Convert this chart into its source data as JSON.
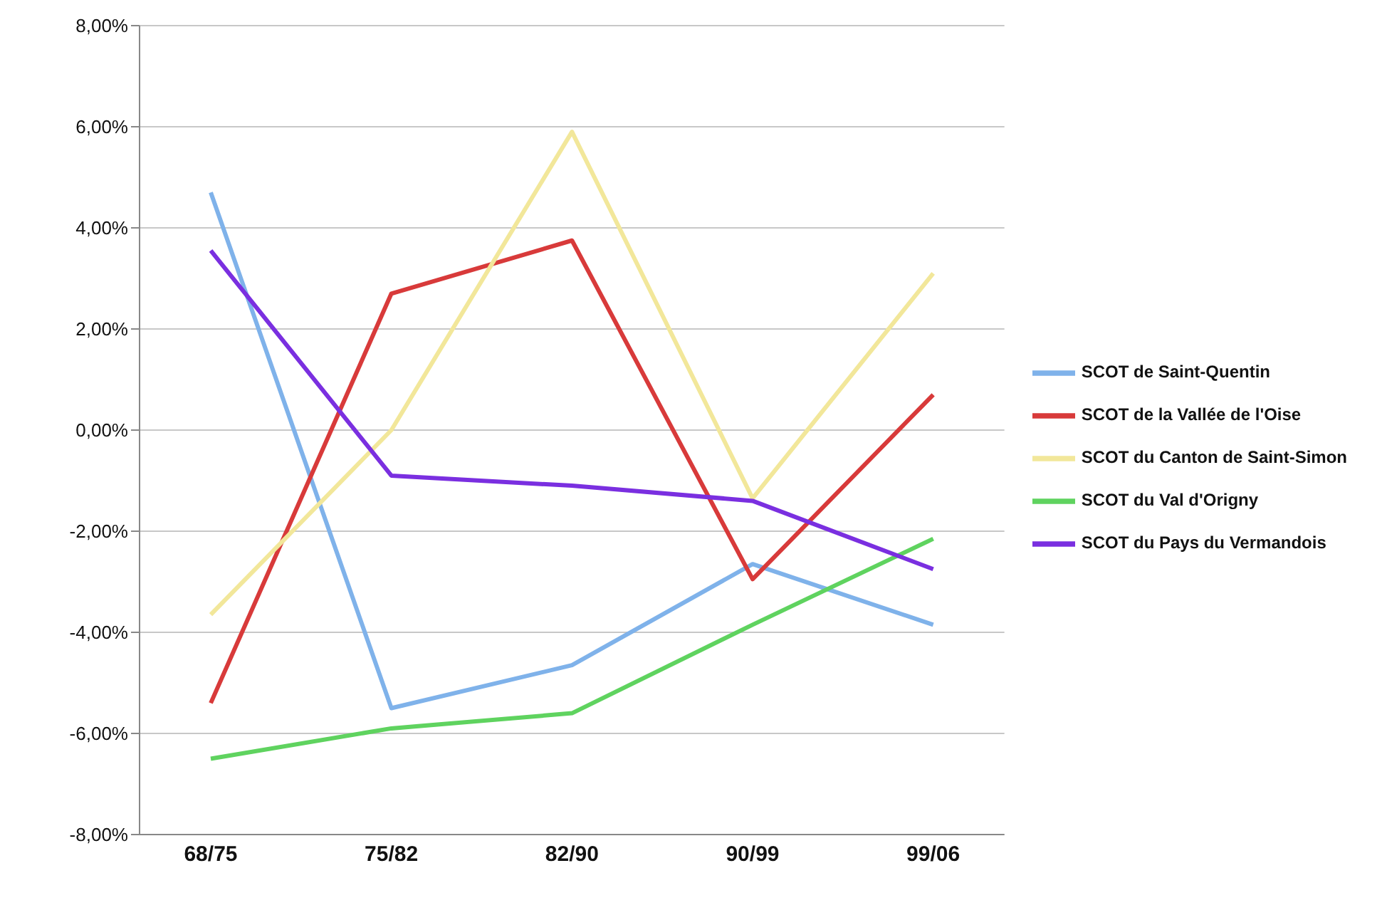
{
  "chart_data": {
    "type": "line",
    "categories": [
      "68/75",
      "75/82",
      "82/90",
      "90/99",
      "99/06"
    ],
    "series": [
      {
        "name": "SCOT de Saint-Quentin",
        "color": "#7fb2ea",
        "values": [
          4.7,
          -5.5,
          -4.65,
          -2.65,
          -3.85
        ]
      },
      {
        "name": "SCOT de la Vallée de l'Oise",
        "color": "#d83a3a",
        "values": [
          -5.4,
          2.7,
          3.75,
          -2.95,
          0.7
        ]
      },
      {
        "name": "SCOT du Canton de Saint-Simon",
        "color": "#f2e79a",
        "values": [
          -3.65,
          0.0,
          5.9,
          -1.35,
          3.1
        ]
      },
      {
        "name": "SCOT du Val d'Origny",
        "color": "#5fd35f",
        "values": [
          -6.5,
          -5.9,
          -5.6,
          -3.85,
          -2.15
        ]
      },
      {
        "name": "SCOT du Pays du Vermandois",
        "color": "#7a2fe0",
        "values": [
          3.55,
          -0.9,
          -1.1,
          -1.4,
          -2.75
        ]
      }
    ],
    "ylim": [
      -8,
      8
    ],
    "yticks": [
      {
        "value": -8,
        "label": "-8,00%"
      },
      {
        "value": -6,
        "label": "-6,00%"
      },
      {
        "value": -4,
        "label": "-4,00%"
      },
      {
        "value": -2,
        "label": "-2,00%"
      },
      {
        "value": 0,
        "label": "0,00%"
      },
      {
        "value": 2,
        "label": "2,00%"
      },
      {
        "value": 4,
        "label": "4,00%"
      },
      {
        "value": 6,
        "label": "6,00%"
      },
      {
        "value": 8,
        "label": "8,00%"
      }
    ],
    "grid": "y",
    "legend": "right",
    "marker": "none",
    "line_style": "solid"
  }
}
